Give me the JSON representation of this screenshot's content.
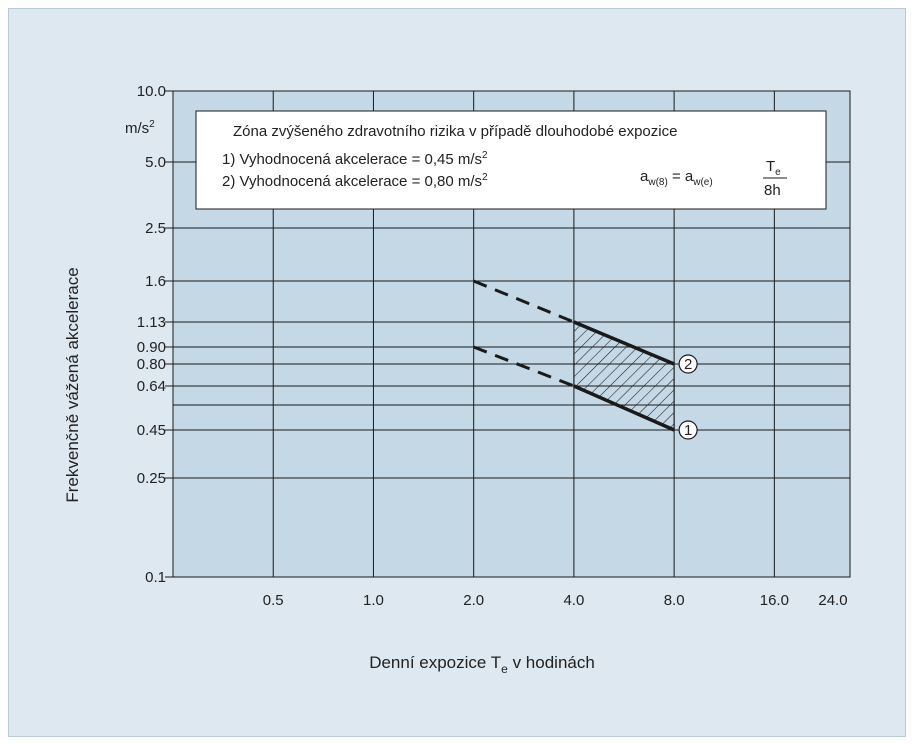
{
  "chart_data": {
    "type": "line",
    "x_scale": "log",
    "y_scale": "nonuniform",
    "xlabel_main": "Denní expozice T",
    "xlabel_sub": "e",
    "xlabel_tail": " v hodinách",
    "ylabel": "Frekvenčně vážená akcelerace",
    "y_unit_base": "m/s",
    "y_unit_sup": "2",
    "x_ticks": [
      "0.5",
      "1.0",
      "2.0",
      "4.0",
      "8.0",
      "16.0",
      "24.0"
    ],
    "x_tick_values": [
      0.5,
      1.0,
      2.0,
      4.0,
      8.0,
      16.0,
      24.0
    ],
    "y_ticks": [
      "10.0",
      "5.0",
      "2.5",
      "1.6",
      "1.13",
      "0.90",
      "0.80",
      "0.64",
      "0.45",
      "0.25",
      "0.1"
    ],
    "y_tick_values": [
      10.0,
      5.0,
      2.5,
      1.6,
      1.13,
      0.9,
      0.8,
      0.64,
      0.45,
      0.25,
      0.1
    ],
    "series": [
      {
        "name": "1",
        "x": [
          2.0,
          4.0,
          8.0
        ],
        "y": [
          0.9,
          0.64,
          0.45
        ],
        "dashed_until_x": 4.0
      },
      {
        "name": "2",
        "x": [
          2.0,
          4.0,
          8.0
        ],
        "y": [
          1.6,
          1.13,
          0.8
        ],
        "dashed_until_x": 4.0
      }
    ],
    "hatched_zone": {
      "x_from": 4.0,
      "x_to": 8.0
    },
    "legend": {
      "title": "Zóna zvýšeného zdravotního rizika v případě dlouhodobé expozice",
      "line1_prefix": "1) Vyhodnocená akcelerace = 0,45 m/s",
      "line1_sup": "2",
      "line2_prefix": "2) Vyhodnocená akcelerace = 0,80 m/s",
      "line2_sup": "2",
      "formula_lhs": "a",
      "formula_lhs_sub": "w(8)",
      "formula_eq": " = a",
      "formula_rhs_sub": "w(e)",
      "formula_num": "T",
      "formula_num_sub": "e",
      "formula_den": "8h"
    },
    "colors": {
      "plot_bg": "#c4d8e5",
      "page_bg": "#dde8f0",
      "grid": "#1a1a1a",
      "line": "#1a1a1a"
    }
  }
}
